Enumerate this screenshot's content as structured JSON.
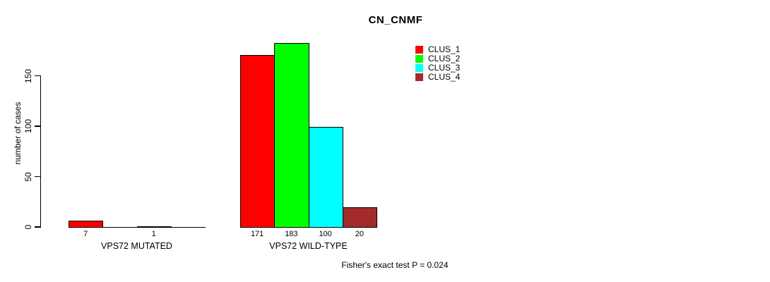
{
  "figure": {
    "title": "CN_CNMF",
    "footer": "Fisher's exact test P = 0.024"
  },
  "chart_data": {
    "type": "bar",
    "title": "CN_CNMF",
    "xlabel": "",
    "ylabel": "number of cases",
    "categories": [
      "VPS72 MUTATED",
      "VPS72 WILD-TYPE"
    ],
    "series": [
      {
        "name": "CLUS_1",
        "color": "#ff0000",
        "values": [
          7,
          171
        ]
      },
      {
        "name": "CLUS_2",
        "color": "#00ff00",
        "values": [
          0,
          183
        ]
      },
      {
        "name": "CLUS_3",
        "color": "#00ffff",
        "values": [
          1,
          100
        ]
      },
      {
        "name": "CLUS_4",
        "color": "#a52a2a",
        "values": [
          0,
          20
        ]
      }
    ],
    "value_labels": [
      [
        "7",
        "",
        "1",
        ""
      ],
      [
        "171",
        "183",
        "100",
        "20"
      ]
    ],
    "yticks": [
      0,
      50,
      100,
      150
    ],
    "ylim": [
      0,
      150
    ],
    "grid": false,
    "legend_position": "top-right",
    "annotation": "Fisher's exact test P = 0.024"
  }
}
